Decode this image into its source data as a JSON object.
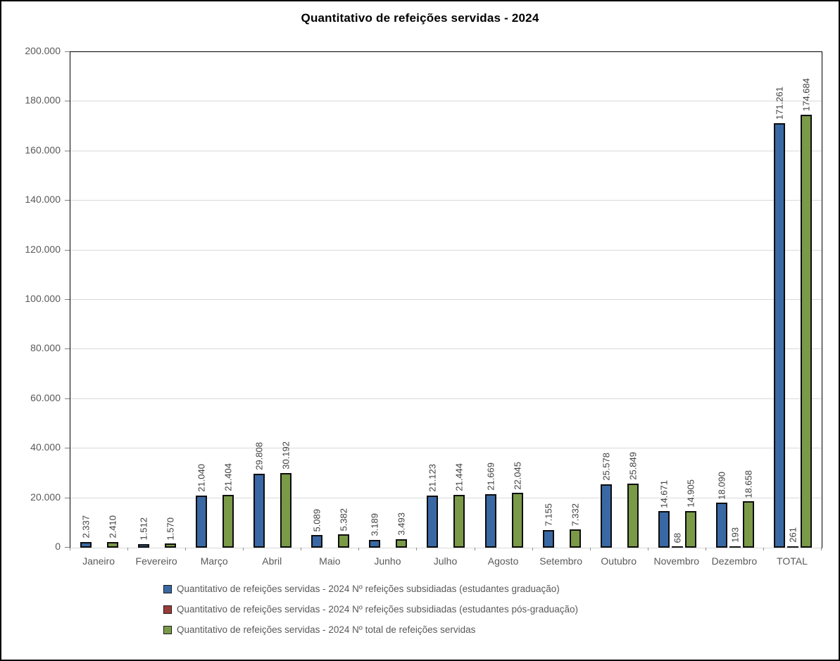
{
  "title": "Quantitativo de refeições servidas - 2024",
  "colors": {
    "series_graduacao": "#3A68A4",
    "series_pos_graduacao": "#9A3B38",
    "series_total": "#7A9A48",
    "bar_border": "#0D0D0D",
    "gridline": "#D9D9D9",
    "axis_text": "#595959",
    "data_label_text": "#404040",
    "plot_border": "#000000"
  },
  "chart_data": {
    "type": "bar",
    "title": "Quantitativo de refeições servidas - 2024",
    "categories": [
      "Janeiro",
      "Fevereiro",
      "Março",
      "Abril",
      "Maio",
      "Junho",
      "Julho",
      "Agosto",
      "Setembro",
      "Outubro",
      "Novembro",
      "Dezembro",
      "TOTAL"
    ],
    "series": [
      {
        "name": "Quantitativo de refeições servidas - 2024 Nº refeições subsidiadas (estudantes graduação)",
        "color": "#3A68A4",
        "values": [
          2337,
          1512,
          21040,
          29808,
          5089,
          3189,
          21123,
          21669,
          7155,
          25578,
          14671,
          18090,
          171261
        ]
      },
      {
        "name": "Quantitativo de refeições servidas - 2024 Nº refeições subsidiadas (estudantes pós-graduação)",
        "color": "#9A3B38",
        "values": [
          0,
          0,
          0,
          0,
          0,
          0,
          0,
          0,
          0,
          0,
          68,
          193,
          261
        ]
      },
      {
        "name": "Quantitativo de refeições servidas - 2024 Nº total de refeições servidas",
        "color": "#7A9A48",
        "values": [
          2410,
          1570,
          21404,
          30192,
          5382,
          3493,
          21444,
          22045,
          7332,
          25849,
          14905,
          18658,
          174684
        ]
      }
    ],
    "xlabel": "",
    "ylabel": "",
    "ylim": [
      0,
      200000
    ],
    "ytick_step": 20000,
    "ytick_labels": [
      "0",
      "20.000",
      "40.000",
      "60.000",
      "80.000",
      "100.000",
      "120.000",
      "140.000",
      "160.000",
      "180.000",
      "200.000"
    ],
    "grid": true,
    "legend_position": "bottom",
    "data_labels": "rotated-90-above-bars",
    "number_format": "thousands-dot"
  }
}
